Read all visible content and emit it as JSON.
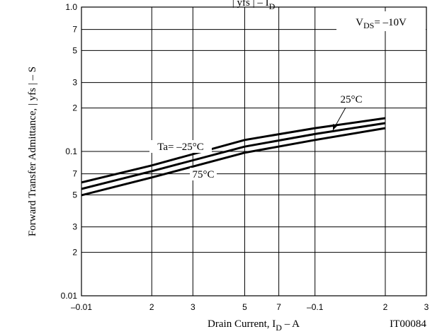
{
  "chart_data": {
    "type": "line",
    "title": {
      "pre": "| yfs |  – I",
      "sub": "D"
    },
    "x_label": {
      "pre": "Drain Current, I",
      "sub": "D",
      "post": "  –  A"
    },
    "y_label": "Forward Transfer Admittance, | yfs | – S",
    "condition": {
      "pre": "V",
      "sub": "DS",
      "post": "= –10V"
    },
    "code": "IT00084",
    "log_x": true,
    "log_y": true,
    "grid": true,
    "xlim": [
      -0.01,
      -0.3
    ],
    "ylim": [
      0.01,
      1.0
    ],
    "xticks": [
      {
        "value": -0.01,
        "label": "–0.01"
      },
      {
        "value": -0.02,
        "label": "2"
      },
      {
        "value": -0.03,
        "label": "3"
      },
      {
        "value": -0.05,
        "label": "5"
      },
      {
        "value": -0.07,
        "label": "7"
      },
      {
        "value": -0.1,
        "label": "–0.1"
      },
      {
        "value": -0.2,
        "label": "2"
      },
      {
        "value": -0.3,
        "label": "3"
      }
    ],
    "yticks": [
      0.01,
      {
        "value": 0.02,
        "label": "2"
      },
      {
        "value": 0.03,
        "label": "3"
      },
      {
        "value": 0.05,
        "label": "5"
      },
      {
        "value": 0.07,
        "label": "7"
      },
      0.1,
      {
        "value": 0.2,
        "label": "2"
      },
      {
        "value": 0.3,
        "label": "3"
      },
      {
        "value": 0.5,
        "label": "5"
      },
      {
        "value": 0.7,
        "label": "7"
      },
      {
        "value": 1.0,
        "label": "1.0"
      }
    ],
    "x": [
      -0.01,
      -0.02,
      -0.05,
      -0.1,
      -0.2
    ],
    "series": [
      {
        "name": "Ta= –25°C",
        "color": "#000000",
        "values": [
          0.061,
          0.08,
          0.12,
          0.145,
          0.17
        ]
      },
      {
        "name": "25°C",
        "color": "#000000",
        "values": [
          0.055,
          0.073,
          0.108,
          0.132,
          0.157
        ]
      },
      {
        "name": "75°C",
        "color": "#000000",
        "values": [
          0.0497,
          0.066,
          0.098,
          0.12,
          0.145
        ]
      }
    ]
  }
}
